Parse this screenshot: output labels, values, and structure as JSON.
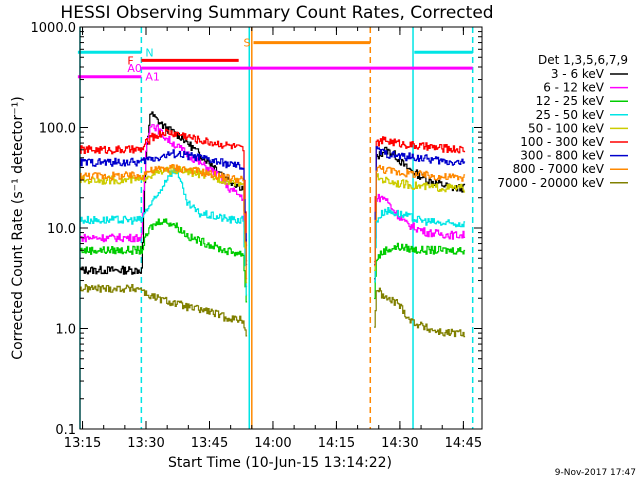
{
  "chart_data": {
    "type": "line",
    "title": "HESSI Observing Summary Count Rates, Corrected",
    "xlabel": "Start Time (10-Jun-15 13:14:22)",
    "ylabel": "Corrected Count Rate (s⁻¹ detector⁻¹)",
    "x_unit": "minutes after 13:14:22",
    "xlim": [
      0,
      95
    ],
    "ylim": [
      0.1,
      1000
    ],
    "yscale": "log",
    "xticks": [
      {
        "x": 0.6,
        "label": "13:15"
      },
      {
        "x": 15.6,
        "label": "13:30"
      },
      {
        "x": 30.6,
        "label": "13:45"
      },
      {
        "x": 45.6,
        "label": "14:00"
      },
      {
        "x": 60.6,
        "label": "14:15"
      },
      {
        "x": 75.6,
        "label": "14:30"
      },
      {
        "x": 90.6,
        "label": "14:45"
      }
    ],
    "yticks": [
      {
        "y": 0.1,
        "label": "0.1"
      },
      {
        "y": 1,
        "label": "1.0"
      },
      {
        "y": 10,
        "label": "10.0"
      },
      {
        "y": 100,
        "label": "100.0"
      },
      {
        "y": 1000,
        "label": "1000.0"
      }
    ],
    "legend": {
      "header": "Det 1,3,5,6,7,9",
      "position": "right"
    },
    "series": [
      {
        "name": "3 - 6 keV",
        "color": "#000000",
        "points": [
          [
            0,
            3.8
          ],
          [
            14.5,
            3.8
          ],
          [
            15.5,
            50
          ],
          [
            16.5,
            140
          ],
          [
            18,
            120
          ],
          [
            20,
            100
          ],
          [
            24,
            80
          ],
          [
            28,
            55
          ],
          [
            32,
            40
          ],
          [
            35,
            30
          ],
          [
            38.5,
            25
          ],
          [
            39.5,
            2.5
          ],
          [
            null,
            null
          ],
          [
            69.5,
            3
          ],
          [
            70,
            50
          ],
          [
            72,
            60
          ],
          [
            74,
            55
          ],
          [
            77,
            40
          ],
          [
            82,
            30
          ],
          [
            88,
            25
          ],
          [
            91,
            25
          ]
        ]
      },
      {
        "name": "6 - 12 keV",
        "color": "#ff00ff",
        "points": [
          [
            0,
            8
          ],
          [
            14.5,
            8
          ],
          [
            15.5,
            60
          ],
          [
            16.5,
            110
          ],
          [
            18,
            100
          ],
          [
            20,
            80
          ],
          [
            24,
            60
          ],
          [
            28,
            45
          ],
          [
            32,
            35
          ],
          [
            35,
            25
          ],
          [
            38.5,
            20
          ],
          [
            39.5,
            1.3
          ],
          [
            null,
            null
          ],
          [
            69.5,
            3
          ],
          [
            70,
            20
          ],
          [
            72,
            20
          ],
          [
            74,
            15
          ],
          [
            77,
            11
          ],
          [
            82,
            9
          ],
          [
            88,
            8.5
          ],
          [
            91,
            8.5
          ]
        ]
      },
      {
        "name": "12 - 25 keV",
        "color": "#00cc00",
        "points": [
          [
            0,
            6
          ],
          [
            14.5,
            6
          ],
          [
            15.5,
            8
          ],
          [
            16.5,
            10
          ],
          [
            19,
            12
          ],
          [
            22,
            11
          ],
          [
            26,
            8
          ],
          [
            30,
            7
          ],
          [
            34,
            6
          ],
          [
            38.5,
            5.5
          ],
          [
            39.5,
            1.3
          ],
          [
            null,
            null
          ],
          [
            69.5,
            2
          ],
          [
            70,
            5
          ],
          [
            72,
            6
          ],
          [
            75,
            6.5
          ],
          [
            80,
            6
          ],
          [
            86,
            6
          ],
          [
            91,
            6
          ]
        ]
      },
      {
        "name": "25 - 50 keV",
        "color": "#00e5e5",
        "points": [
          [
            0,
            12
          ],
          [
            14.5,
            12
          ],
          [
            15.5,
            15
          ],
          [
            18,
            20
          ],
          [
            21,
            35
          ],
          [
            23,
            37
          ],
          [
            25,
            18
          ],
          [
            28,
            14
          ],
          [
            32,
            13
          ],
          [
            36,
            12
          ],
          [
            38.5,
            12
          ],
          [
            39.5,
            1.3
          ],
          [
            null,
            null
          ],
          [
            69.5,
            3
          ],
          [
            70,
            12
          ],
          [
            72,
            15
          ],
          [
            75,
            14
          ],
          [
            80,
            12
          ],
          [
            86,
            11
          ],
          [
            91,
            11
          ]
        ]
      },
      {
        "name": "50 - 100 keV",
        "color": "#cccc00",
        "points": [
          [
            0,
            30
          ],
          [
            14.5,
            30
          ],
          [
            15.5,
            33
          ],
          [
            18,
            35
          ],
          [
            22,
            38
          ],
          [
            26,
            36
          ],
          [
            30,
            33
          ],
          [
            34,
            30
          ],
          [
            38.5,
            28
          ],
          [
            39.5,
            1.5
          ],
          [
            null,
            null
          ],
          [
            69.5,
            4
          ],
          [
            70,
            32
          ],
          [
            72,
            30
          ],
          [
            75,
            28
          ],
          [
            80,
            26
          ],
          [
            86,
            25
          ],
          [
            91,
            25
          ]
        ]
      },
      {
        "name": "100 - 300 keV",
        "color": "#ff0000",
        "points": [
          [
            0,
            60
          ],
          [
            14.5,
            60
          ],
          [
            15.5,
            70
          ],
          [
            17,
            80
          ],
          [
            20,
            90
          ],
          [
            24,
            85
          ],
          [
            28,
            75
          ],
          [
            32,
            70
          ],
          [
            36,
            65
          ],
          [
            38.5,
            60
          ],
          [
            39.5,
            3
          ],
          [
            null,
            null
          ],
          [
            69.5,
            5
          ],
          [
            70,
            70
          ],
          [
            72,
            75
          ],
          [
            75,
            70
          ],
          [
            80,
            65
          ],
          [
            86,
            62
          ],
          [
            91,
            60
          ]
        ]
      },
      {
        "name": "300 - 800 keV",
        "color": "#0000cc",
        "points": [
          [
            0,
            45
          ],
          [
            14.5,
            45
          ],
          [
            15.5,
            48
          ],
          [
            18,
            50
          ],
          [
            22,
            55
          ],
          [
            26,
            52
          ],
          [
            30,
            48
          ],
          [
            34,
            44
          ],
          [
            38.5,
            40
          ],
          [
            39.5,
            2
          ],
          [
            null,
            null
          ],
          [
            69.5,
            4
          ],
          [
            70,
            60
          ],
          [
            72,
            55
          ],
          [
            75,
            52
          ],
          [
            80,
            50
          ],
          [
            86,
            46
          ],
          [
            91,
            45
          ]
        ]
      },
      {
        "name": "800 - 7000 keV",
        "color": "#ff8800",
        "points": [
          [
            0,
            33
          ],
          [
            14.5,
            33
          ],
          [
            15.5,
            36
          ],
          [
            18,
            38
          ],
          [
            22,
            40
          ],
          [
            26,
            38
          ],
          [
            30,
            35
          ],
          [
            34,
            32
          ],
          [
            38.5,
            30
          ],
          [
            39.5,
            1.5
          ],
          [
            null,
            null
          ],
          [
            69.5,
            4
          ],
          [
            70,
            40
          ],
          [
            72,
            38
          ],
          [
            75,
            36
          ],
          [
            80,
            34
          ],
          [
            86,
            32
          ],
          [
            91,
            32
          ]
        ]
      },
      {
        "name": "7000 - 20000 keV",
        "color": "#808000",
        "points": [
          [
            0,
            2.5
          ],
          [
            14.5,
            2.5
          ],
          [
            15.5,
            2.2
          ],
          [
            18,
            2
          ],
          [
            22,
            1.8
          ],
          [
            26,
            1.6
          ],
          [
            30,
            1.5
          ],
          [
            34,
            1.3
          ],
          [
            38.5,
            1.2
          ],
          [
            39.5,
            0.8
          ],
          [
            null,
            null
          ],
          [
            69.5,
            1
          ],
          [
            70,
            2.5
          ],
          [
            72,
            2
          ],
          [
            75,
            1.8
          ],
          [
            78,
            1.2
          ],
          [
            82,
            1
          ],
          [
            86,
            0.9
          ],
          [
            91,
            0.9
          ]
        ]
      }
    ],
    "markers": {
      "vlines": [
        {
          "x": 0,
          "color": "#00e5e5",
          "style": "solid"
        },
        {
          "x": 14.5,
          "color": "#00e5e5",
          "style": "dashed"
        },
        {
          "x": 40,
          "color": "#00e5e5",
          "style": "solid"
        },
        {
          "x": 40.6,
          "color": "#ff8800",
          "style": "solid"
        },
        {
          "x": 68.6,
          "color": "#ff8800",
          "style": "dashed"
        },
        {
          "x": 78.7,
          "color": "#00e5e5",
          "style": "solid"
        },
        {
          "x": 92.8,
          "color": "#00e5e5",
          "style": "dashed"
        }
      ],
      "bars": [
        {
          "label": "N",
          "color": "#00e5e5",
          "y": 560,
          "segments": [
            [
              -0.5,
              14.5
            ],
            [
              79,
              92.8
            ]
          ]
        },
        {
          "label": "F",
          "color": "#ff0000",
          "y": 465,
          "segments": [
            [
              14.5,
              37.5
            ]
          ]
        },
        {
          "label": "A0",
          "color": "#ff00ff",
          "y": 390,
          "segments": [
            [
              14.5,
              92.8
            ]
          ]
        },
        {
          "label": "A1",
          "color": "#ff00ff",
          "y": 320,
          "segments": [
            [
              -0.5,
              14.5
            ]
          ]
        },
        {
          "label": "S",
          "color": "#ff8800",
          "y": 700,
          "segments": [
            [
              41,
              68.6
            ]
          ]
        }
      ]
    }
  },
  "footer": {
    "date_stamp": "9-Nov-2017 17:47"
  }
}
